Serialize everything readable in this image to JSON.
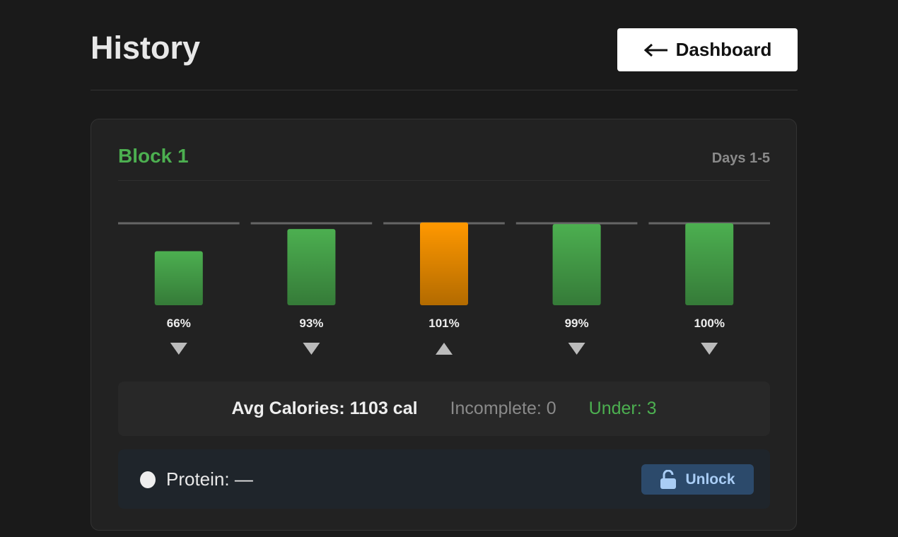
{
  "header": {
    "title": "History",
    "button": "Dashboard"
  },
  "block": {
    "title": "Block 1",
    "range": "Days 1-5",
    "stats": {
      "avg": "Avg Calories: 1103 cal",
      "incomplete": "Incomplete: 0",
      "under": "Under: 3"
    },
    "protein": {
      "label": "Protein: —",
      "button": "Unlock"
    }
  },
  "chart_data": {
    "type": "bar",
    "values": [
      66,
      93,
      101,
      99,
      100
    ],
    "value_labels": [
      "66%",
      "93%",
      "101%",
      "99%",
      "100%"
    ],
    "colors": [
      "#4caf50",
      "#4caf50",
      "#ff9800",
      "#4caf50",
      "#4caf50"
    ],
    "directions": [
      "down",
      "down",
      "up",
      "down",
      "down"
    ],
    "ylim": [
      0,
      100
    ]
  }
}
